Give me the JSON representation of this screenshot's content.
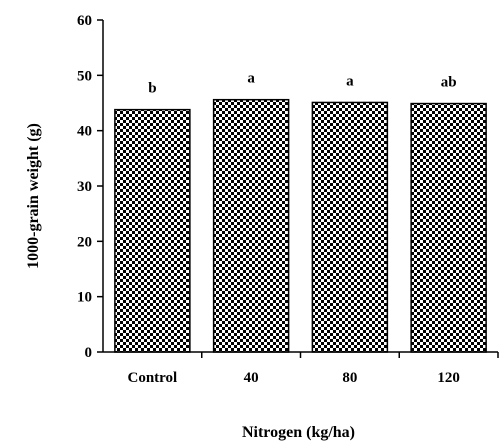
{
  "chart_data": {
    "type": "bar",
    "categories": [
      "Control",
      "40",
      "80",
      "120"
    ],
    "values": [
      43.8,
      45.6,
      45.1,
      44.9
    ],
    "significance_labels": [
      "b",
      "a",
      "a",
      "ab"
    ],
    "title": "",
    "xlabel": "Nitrogen (kg/ha)",
    "ylabel": "1000-grain weight (g)",
    "ylim": [
      0,
      60
    ],
    "yticks": [
      0,
      10,
      20,
      30,
      40,
      50,
      60
    ],
    "grid": false,
    "legend": "none",
    "bar_pattern": "checkered-black-white"
  }
}
